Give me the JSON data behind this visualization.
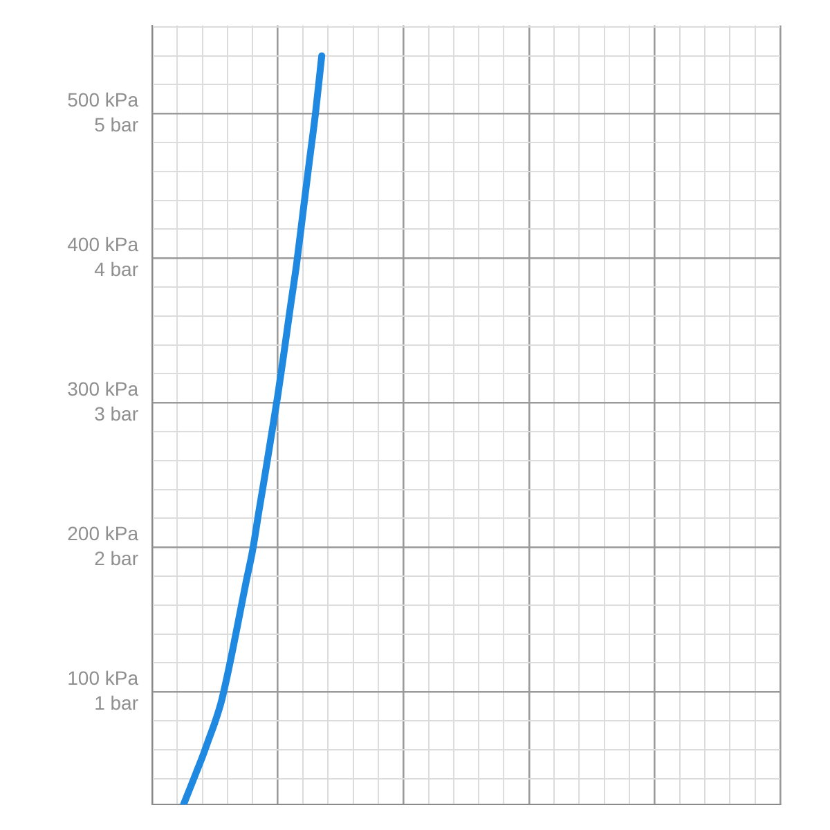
{
  "chart_data": {
    "type": "line",
    "categories": [
      null,
      null,
      null,
      null,
      null,
      null,
      null,
      null,
      null,
      null,
      null,
      null,
      null,
      null,
      null,
      null,
      null,
      null,
      null,
      null,
      null,
      null,
      null,
      null,
      null,
      null,
      null,
      null,
      null,
      null,
      null,
      null,
      null,
      null,
      null,
      null,
      null,
      null,
      null,
      null,
      null,
      null,
      null,
      null,
      null,
      null,
      null,
      null,
      null,
      null,
      null,
      null,
      null,
      null,
      null,
      null,
      null,
      null,
      null,
      null,
      null,
      null,
      null,
      null,
      null,
      null,
      null,
      null,
      null,
      null,
      null,
      null,
      null,
      null,
      null,
      null,
      null,
      null,
      null,
      null,
      null,
      null,
      null,
      null,
      null,
      null,
      null,
      null,
      null,
      null,
      null,
      null,
      null,
      null,
      null,
      null,
      null,
      null,
      null,
      null,
      null
    ],
    "series": [
      {
        "color": "#1f88e0",
        "values": [
          null,
          null,
          null,
          null,
          null,
          22,
          33,
          44,
          55,
          67,
          79,
          93,
          112,
          133,
          155,
          177,
          198,
          225,
          251,
          278,
          305,
          335,
          366,
          396,
          431,
          466,
          500,
          540,
          null,
          null,
          null,
          null,
          null,
          null,
          null,
          null,
          null,
          null,
          null,
          null,
          null,
          null,
          null,
          null,
          null,
          null,
          null,
          null,
          null,
          null,
          null,
          null,
          null,
          null,
          null,
          null,
          null,
          null,
          null,
          null,
          null,
          null,
          null,
          null,
          null,
          null,
          null,
          null,
          null,
          null,
          null,
          null,
          null,
          null,
          null,
          null,
          null,
          null,
          null,
          null,
          null,
          null,
          null,
          null,
          null,
          null,
          null,
          null,
          null,
          null,
          null,
          null,
          null,
          null,
          null,
          null,
          null,
          null,
          null,
          null,
          null
        ]
      }
    ],
    "ylim": [
      22,
      561
    ],
    "yticks": [
      {
        "value": 40,
        "label": null
      },
      {
        "value": 60,
        "label": null
      },
      {
        "value": 80,
        "label": null
      },
      {
        "value": 100,
        "label": "100 kPa"
      },
      {
        "value": 120,
        "label": null
      },
      {
        "value": 140,
        "label": null
      },
      {
        "value": 160,
        "label": null
      },
      {
        "value": 180,
        "label": null
      },
      {
        "value": 200,
        "label": "200 kPa"
      },
      {
        "value": 220,
        "label": null
      },
      {
        "value": 240,
        "label": null
      },
      {
        "value": 260,
        "label": null
      },
      {
        "value": 280,
        "label": null
      },
      {
        "value": 300,
        "label": "300 kPa"
      },
      {
        "value": 320,
        "label": null
      },
      {
        "value": 340,
        "label": null
      },
      {
        "value": 360,
        "label": null
      },
      {
        "value": 380,
        "label": null
      },
      {
        "value": 400,
        "label": "400 kPa"
      },
      {
        "value": 420,
        "label": null
      },
      {
        "value": 440,
        "label": null
      },
      {
        "value": 460,
        "label": null
      },
      {
        "value": 480,
        "label": null
      },
      {
        "value": 500,
        "label": "500 kPa"
      },
      {
        "value": 520,
        "label": null
      },
      {
        "value": 540,
        "label": null
      },
      {
        "value": 560,
        "label": null
      }
    ],
    "y2lim": [
      0.22,
      5.61
    ],
    "y2ticks": [
      {
        "value": 1,
        "label": "1 bar"
      },
      {
        "value": 2,
        "label": "2 bar"
      },
      {
        "value": 3,
        "label": "3 bar"
      },
      {
        "value": 4,
        "label": "4 bar"
      },
      {
        "value": 5,
        "label": "5 bar"
      }
    ],
    "tick_labels": "y",
    "grid": true,
    "legend": false,
    "marker": "none",
    "line_style": "solid"
  }
}
